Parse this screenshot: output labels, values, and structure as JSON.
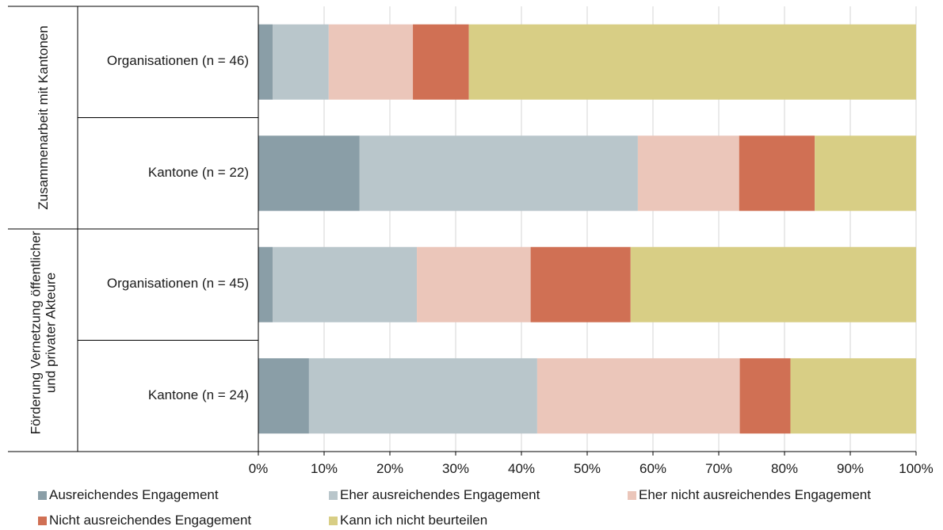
{
  "chart_data": {
    "type": "bar",
    "orientation": "horizontal",
    "stacked": true,
    "groups": [
      {
        "label": "Zusammenarbeit mit Kantonen",
        "categories": [
          "Organisationen (n = 46)",
          "Kantone (n = 22)"
        ]
      },
      {
        "label": "Förderung Vernetzung öffentlicher und privater Akteure",
        "categories": [
          "Organisationen (n = 45)",
          "Kantone (n = 24)"
        ]
      }
    ],
    "categories": [
      "Organisationen (n = 46)",
      "Kantone (n = 22)",
      "Organisationen (n = 45)",
      "Kantone (n = 24)"
    ],
    "series": [
      {
        "name": "Ausreichendes Engagement",
        "color": "#8a9ea7",
        "values": [
          2.2,
          15.4,
          2.2,
          7.7
        ]
      },
      {
        "name": "Eher ausreichendes Engagement",
        "color": "#b9c6cb",
        "values": [
          8.5,
          42.3,
          21.9,
          34.7
        ]
      },
      {
        "name": "Eher nicht ausreichendes Engagement",
        "color": "#ebc6ba",
        "values": [
          12.8,
          15.4,
          17.3,
          30.8
        ]
      },
      {
        "name": "Nicht ausreichendes Engagement",
        "color": "#d07054",
        "values": [
          8.5,
          11.5,
          15.2,
          7.7
        ]
      },
      {
        "name": "Kann ich nicht beurteilen",
        "color": "#d8ce85",
        "values": [
          68.0,
          15.4,
          43.4,
          19.1
        ]
      }
    ],
    "xlim": [
      0,
      100
    ],
    "xticks": [
      "0%",
      "10%",
      "20%",
      "30%",
      "40%",
      "50%",
      "60%",
      "70%",
      "80%",
      "90%",
      "100%"
    ],
    "grid": "vertical",
    "legend_position": "bottom"
  }
}
